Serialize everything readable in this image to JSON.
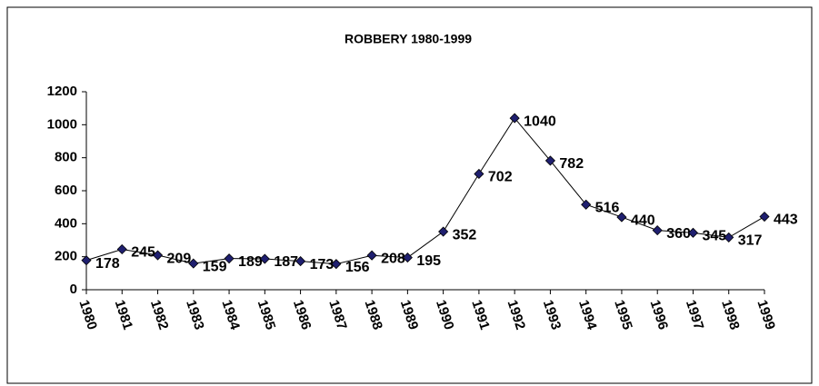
{
  "chart_data": {
    "type": "line",
    "title": "ROBBERY 1980-1999",
    "categories": [
      "1980",
      "1981",
      "1982",
      "1983",
      "1984",
      "1985",
      "1986",
      "1987",
      "1988",
      "1989",
      "1990",
      "1991",
      "1992",
      "1993",
      "1994",
      "1995",
      "1996",
      "1997",
      "1998",
      "1999"
    ],
    "values": [
      178,
      245,
      209,
      159,
      189,
      187,
      173,
      156,
      208,
      195,
      352,
      702,
      1040,
      782,
      516,
      440,
      360,
      345,
      317,
      443
    ],
    "color": "#1f1f6f",
    "ylim": [
      0,
      1200
    ],
    "yticks": [
      0,
      200,
      400,
      600,
      800,
      1000,
      1200
    ],
    "grid": false
  }
}
